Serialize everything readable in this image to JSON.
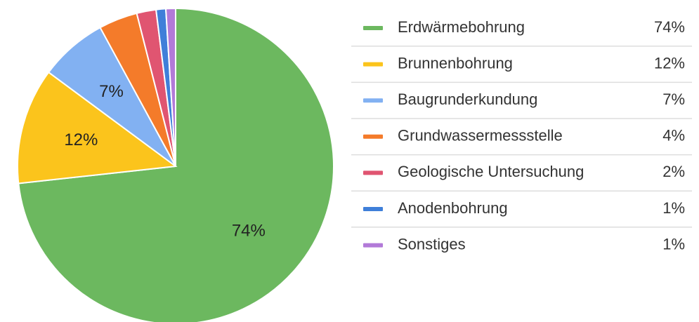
{
  "chart_data": {
    "type": "pie",
    "categories": [
      "Erdwärmebohrung",
      "Brunnenbohrung",
      "Baugrunderkundung",
      "Grundwassermessstelle",
      "Geologische Untersuchung",
      "Anodenbohrung",
      "Sonstiges"
    ],
    "values": [
      74,
      12,
      7,
      4,
      2,
      1,
      1
    ],
    "value_labels": [
      "74%",
      "12%",
      "7%",
      "4%",
      "2%",
      "1%",
      "1%"
    ],
    "colors": [
      "#6cb85f",
      "#fbc41c",
      "#82b1f2",
      "#f47b2a",
      "#e05571",
      "#3f7fd9",
      "#b27ad8"
    ],
    "legend": "right"
  }
}
